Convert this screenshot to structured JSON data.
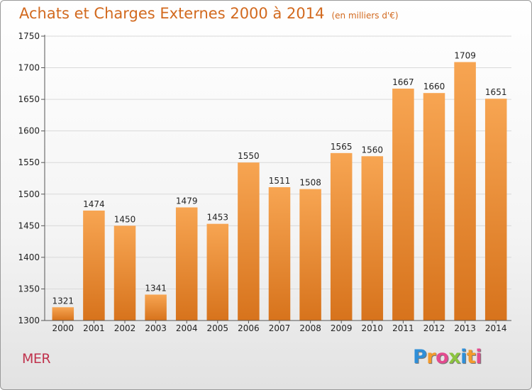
{
  "chart_data": {
    "type": "bar",
    "title": "Achats et Charges Externes 2000 à 2014",
    "subtitle": "(en milliers d'€)",
    "xlabel": "",
    "ylabel": "",
    "categories": [
      "2000",
      "2001",
      "2002",
      "2003",
      "2004",
      "2005",
      "2006",
      "2007",
      "2008",
      "2009",
      "2010",
      "2011",
      "2012",
      "2013",
      "2014"
    ],
    "values": [
      1321,
      1474,
      1450,
      1341,
      1479,
      1453,
      1550,
      1511,
      1508,
      1565,
      1560,
      1667,
      1660,
      1709,
      1651
    ],
    "ylim": [
      1300,
      1750
    ],
    "yticks": [
      1300,
      1350,
      1400,
      1450,
      1500,
      1550,
      1600,
      1650,
      1700,
      1750
    ],
    "grid": true,
    "colors": {
      "bar_top": "#f7a552",
      "bar_bottom": "#d7731c",
      "title": "#d2691e"
    }
  },
  "footer": {
    "commune": "MER",
    "logo_letters": [
      "P",
      "r",
      "o",
      "x",
      "i",
      "t",
      "i"
    ]
  }
}
